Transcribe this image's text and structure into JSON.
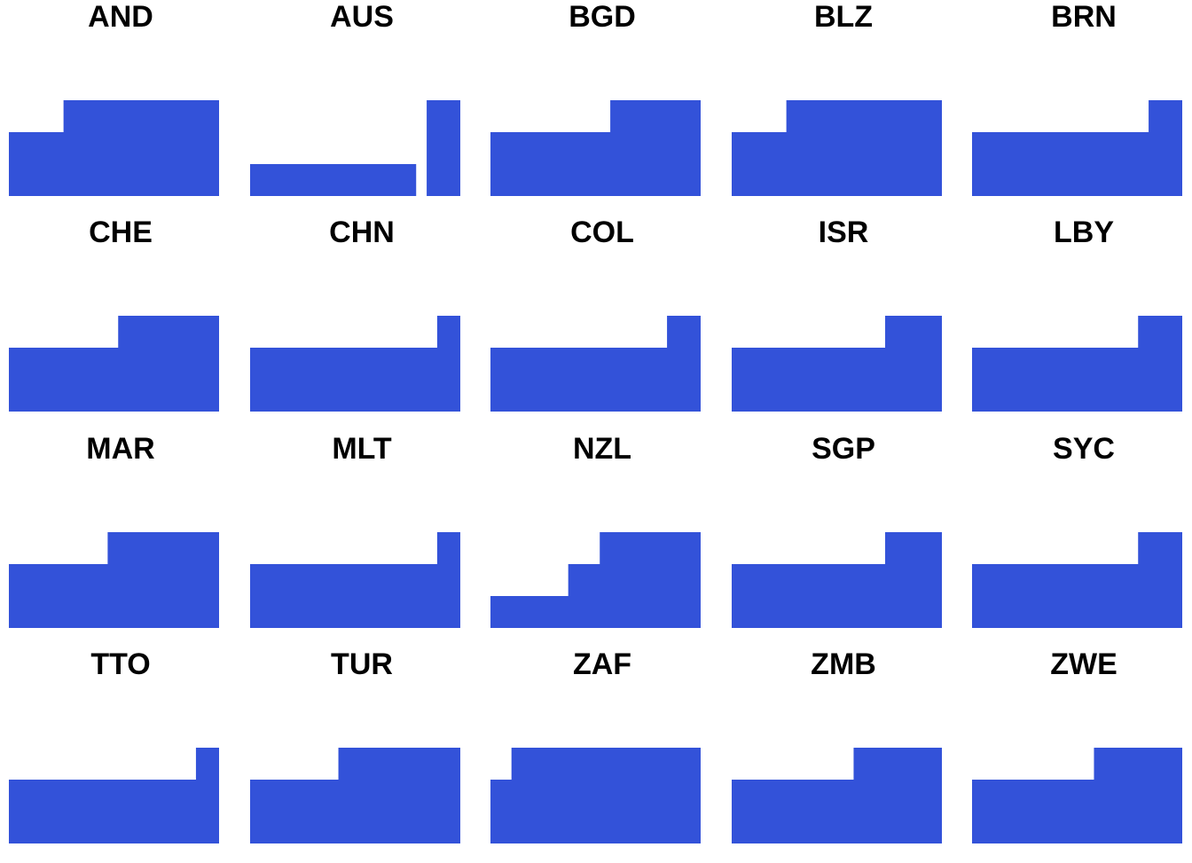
{
  "colors": {
    "fill": "#3352d9",
    "background": "#ffffff",
    "title": "#000000"
  },
  "chart_data": {
    "type": "area",
    "layout": "small-multiples",
    "columns": 5,
    "rows": 4,
    "ylim": [
      0,
      3
    ],
    "grid": false,
    "panels": [
      {
        "title": "AND",
        "x": [
          0,
          0.26,
          0.26,
          1
        ],
        "y": [
          2,
          2,
          3,
          3
        ]
      },
      {
        "title": "AUS",
        "x": [
          0,
          0.79,
          0.79,
          0.84,
          0.84,
          1
        ],
        "y": [
          1,
          1,
          0,
          0,
          3,
          3
        ]
      },
      {
        "title": "BGD",
        "x": [
          0,
          0.57,
          0.57,
          1
        ],
        "y": [
          2,
          2,
          3,
          3
        ]
      },
      {
        "title": "BLZ",
        "x": [
          0,
          0.26,
          0.26,
          1
        ],
        "y": [
          2,
          2,
          3,
          3
        ]
      },
      {
        "title": "BRN",
        "x": [
          0,
          0.84,
          0.84,
          1
        ],
        "y": [
          2,
          2,
          3,
          3
        ]
      },
      {
        "title": "CHE",
        "x": [
          0,
          0.52,
          0.52,
          1
        ],
        "y": [
          2,
          2,
          3,
          3
        ]
      },
      {
        "title": "CHN",
        "x": [
          0,
          0.89,
          0.89,
          1
        ],
        "y": [
          2,
          2,
          3,
          3
        ]
      },
      {
        "title": "COL",
        "x": [
          0,
          0.84,
          0.84,
          1
        ],
        "y": [
          2,
          2,
          3,
          3
        ]
      },
      {
        "title": "ISR",
        "x": [
          0,
          0.73,
          0.73,
          1
        ],
        "y": [
          2,
          2,
          3,
          3
        ]
      },
      {
        "title": "LBY",
        "x": [
          0,
          0.79,
          0.79,
          1
        ],
        "y": [
          2,
          2,
          3,
          3
        ]
      },
      {
        "title": "MAR",
        "x": [
          0,
          0.47,
          0.47,
          1
        ],
        "y": [
          2,
          2,
          3,
          3
        ]
      },
      {
        "title": "MLT",
        "x": [
          0,
          0.89,
          0.89,
          1
        ],
        "y": [
          2,
          2,
          3,
          3
        ]
      },
      {
        "title": "NZL",
        "x": [
          0,
          0.37,
          0.37,
          0.52,
          0.52,
          1
        ],
        "y": [
          1,
          1,
          2,
          2,
          3,
          3
        ]
      },
      {
        "title": "SGP",
        "x": [
          0,
          0.73,
          0.73,
          1
        ],
        "y": [
          2,
          2,
          3,
          3
        ]
      },
      {
        "title": "SYC",
        "x": [
          0,
          0.79,
          0.79,
          1
        ],
        "y": [
          2,
          2,
          3,
          3
        ]
      },
      {
        "title": "TTO",
        "x": [
          0,
          0.89,
          0.89,
          1
        ],
        "y": [
          2,
          2,
          3,
          3
        ]
      },
      {
        "title": "TUR",
        "x": [
          0,
          0.42,
          0.42,
          1
        ],
        "y": [
          2,
          2,
          3,
          3
        ]
      },
      {
        "title": "ZAF",
        "x": [
          0,
          0.1,
          0.1,
          1
        ],
        "y": [
          2,
          2,
          3,
          3
        ]
      },
      {
        "title": "ZMB",
        "x": [
          0,
          0.58,
          0.58,
          1
        ],
        "y": [
          2,
          2,
          3,
          3
        ]
      },
      {
        "title": "ZWE",
        "x": [
          0,
          0.58,
          0.58,
          1
        ],
        "y": [
          2,
          2,
          3,
          3
        ]
      }
    ]
  }
}
